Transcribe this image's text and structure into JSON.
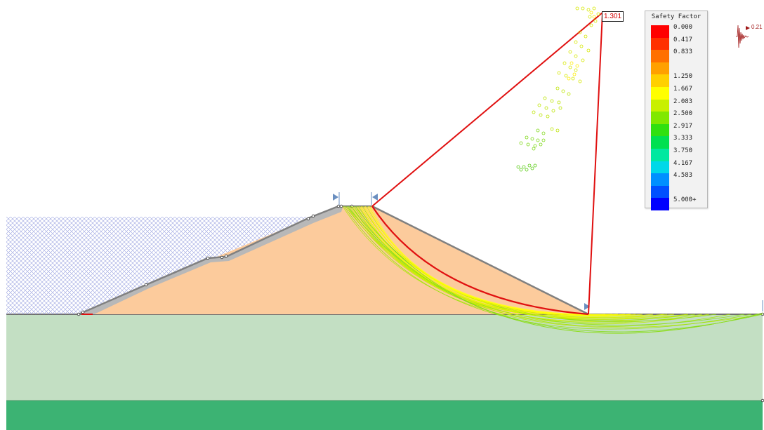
{
  "legend": {
    "title": "Safety Factor",
    "entries": [
      {
        "label": "0.000",
        "color": "#ff0000"
      },
      {
        "label": "0.417",
        "color": "#ff3000"
      },
      {
        "label": "0.833",
        "color": "#ff7000"
      },
      {
        "label": "",
        "color": "#ffa000"
      },
      {
        "label": "1.250",
        "color": "#ffd000"
      },
      {
        "label": "1.667",
        "color": "#ffff00"
      },
      {
        "label": "2.083",
        "color": "#c8f000"
      },
      {
        "label": "2.500",
        "color": "#80e800"
      },
      {
        "label": "2.917",
        "color": "#30e010"
      },
      {
        "label": "3.333",
        "color": "#00e050"
      },
      {
        "label": "3.750",
        "color": "#00e8a0"
      },
      {
        "label": "4.167",
        "color": "#00d8e8"
      },
      {
        "label": "4.583",
        "color": "#0090ff"
      },
      {
        "label": "",
        "color": "#0050ff"
      },
      {
        "label": "5.000+",
        "color": "#0000ff"
      }
    ]
  },
  "critical_surface": {
    "safety_factor": "1.301"
  },
  "seismic": {
    "coefficient_label": "0.21"
  },
  "icons": {
    "seismic": "seismic-waveform-icon",
    "slip_marker": "slip-surface-limit-marker-icon"
  },
  "colors": {
    "embankment_fill": "#fccb9c",
    "foundation_upper": "#c3dfc3",
    "foundation_lower": "#3cb373",
    "water_hatch": "#9aa2e0",
    "critical_surface": "#e01010",
    "slope_outline": "#808080"
  }
}
